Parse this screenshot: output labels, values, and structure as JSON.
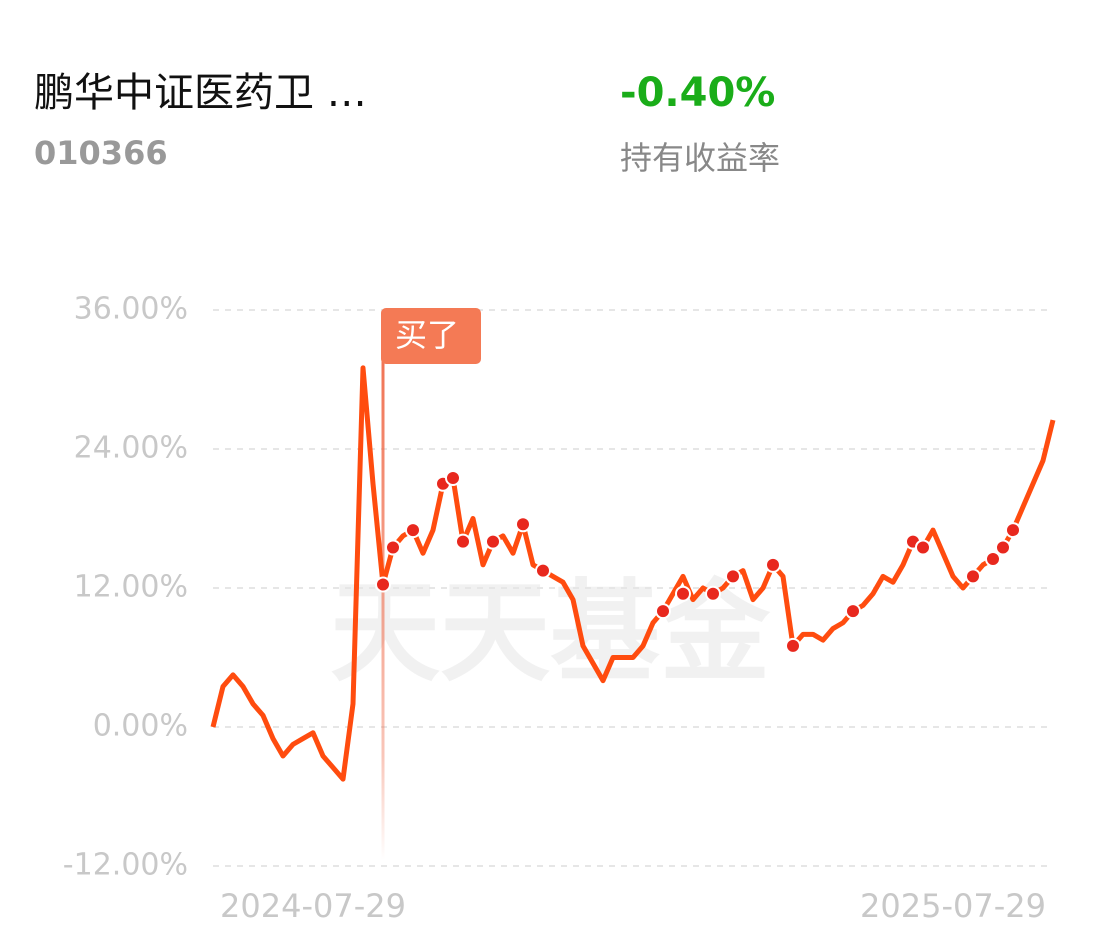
{
  "header": {
    "title": "鹏华中证医药卫 …",
    "code": "010366",
    "return": "-0.40%",
    "return_label": "持有收益率"
  },
  "chart_data": {
    "type": "line",
    "watermark": "天天基金",
    "categories": [
      null,
      null,
      null,
      null,
      null,
      null,
      null,
      null,
      null,
      null,
      "2024-07-29",
      null,
      null,
      null,
      null,
      null,
      null,
      null,
      null,
      null,
      null,
      null,
      null,
      null,
      null,
      null,
      null,
      null,
      null,
      null,
      null,
      null,
      null,
      null,
      null,
      null,
      null,
      null,
      null,
      null,
      null,
      null,
      null,
      null,
      null,
      null,
      null,
      null,
      null,
      null,
      null,
      null,
      null,
      null,
      null,
      null,
      null,
      null,
      null,
      null,
      null,
      null,
      null,
      null,
      null,
      null,
      null,
      null,
      null,
      null,
      null,
      null,
      null,
      null,
      "2025-07-29",
      null,
      null,
      null,
      null,
      null,
      null,
      null,
      null,
      null,
      null
    ],
    "series": [
      {
        "color": "#ff4c0f",
        "mode": "line",
        "values": [
          0,
          3.5,
          4.5,
          3.5,
          2,
          1,
          -1,
          -2.5,
          -1.5,
          -1,
          -0.5,
          -2.5,
          -3.5,
          -4.5,
          2,
          31,
          21,
          12.3,
          15.5,
          16.5,
          17,
          15,
          17,
          21,
          21.5,
          16,
          18,
          14,
          16,
          16.5,
          15,
          17.5,
          14,
          13.5,
          13,
          12.5,
          11,
          7,
          5.5,
          4,
          6,
          6,
          6,
          7,
          9,
          10,
          11.5,
          13,
          11,
          12,
          11.5,
          12,
          13,
          13.5,
          11,
          12,
          14,
          13,
          7,
          8,
          8,
          7.5,
          8.5,
          9,
          10,
          10.5,
          11.5,
          13,
          12.5,
          14,
          16,
          15.5,
          17,
          15,
          13,
          12,
          13,
          14,
          14.5,
          15.5,
          17,
          19,
          21,
          23,
          26.5
        ]
      },
      {
        "color": "#e8281e",
        "mode": "markers",
        "values": [
          null,
          null,
          null,
          null,
          null,
          null,
          null,
          null,
          null,
          null,
          null,
          null,
          null,
          null,
          null,
          null,
          null,
          12.3,
          15.5,
          null,
          17,
          null,
          null,
          21,
          21.5,
          16,
          null,
          null,
          16,
          null,
          null,
          17.5,
          null,
          13.5,
          null,
          null,
          null,
          null,
          null,
          null,
          null,
          null,
          null,
          null,
          null,
          10,
          null,
          11.5,
          null,
          null,
          11.5,
          null,
          13,
          null,
          null,
          null,
          14,
          null,
          7,
          null,
          null,
          null,
          null,
          null,
          10,
          null,
          null,
          null,
          null,
          null,
          16,
          15.5,
          null,
          null,
          null,
          null,
          13,
          null,
          14.5,
          15.5,
          17,
          null,
          null,
          null,
          null
        ]
      }
    ],
    "annotations": [
      {
        "text": "买了",
        "x": 17
      }
    ],
    "ylim": [
      -12,
      36
    ],
    "yticks": [
      {
        "value": -12,
        "label": "-12.00%"
      },
      {
        "value": 0,
        "label": "0.00%"
      },
      {
        "value": 12,
        "label": "12.00%"
      },
      {
        "value": 24,
        "label": "24.00%"
      },
      {
        "value": 36,
        "label": "36.00%"
      }
    ],
    "grid": true
  }
}
